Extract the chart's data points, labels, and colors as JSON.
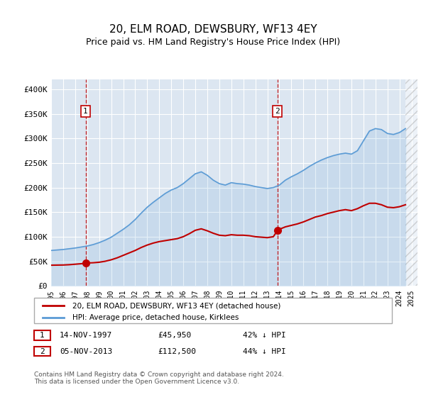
{
  "title": "20, ELM ROAD, DEWSBURY, WF13 4EY",
  "subtitle": "Price paid vs. HM Land Registry's House Price Index (HPI)",
  "ylabel_ticks": [
    "£0",
    "£50K",
    "£100K",
    "£150K",
    "£200K",
    "£250K",
    "£300K",
    "£350K",
    "£400K"
  ],
  "ylim": [
    0,
    420000
  ],
  "xlim_start": 1995,
  "xlim_end": 2025.5,
  "hpi_color": "#5b9bd5",
  "price_color": "#c00000",
  "background_color": "#dce6f1",
  "plot_bg": "#dce6f1",
  "marker1_date": 1997.87,
  "marker1_price": 45950,
  "marker1_label": "1",
  "marker2_date": 2013.84,
  "marker2_price": 112500,
  "marker2_label": "2",
  "legend_line1": "20, ELM ROAD, DEWSBURY, WF13 4EY (detached house)",
  "legend_line2": "HPI: Average price, detached house, Kirklees",
  "annotation1_date": "14-NOV-1997",
  "annotation1_price": "£45,950",
  "annotation1_pct": "42% ↓ HPI",
  "annotation2_date": "05-NOV-2013",
  "annotation2_price": "£112,500",
  "annotation2_pct": "44% ↓ HPI",
  "footer": "Contains HM Land Registry data © Crown copyright and database right 2024.\nThis data is licensed under the Open Government Licence v3.0.",
  "hpi_x": [
    1995,
    1995.5,
    1996,
    1996.5,
    1997,
    1997.5,
    1998,
    1998.5,
    1999,
    1999.5,
    2000,
    2000.5,
    2001,
    2001.5,
    2002,
    2002.5,
    2003,
    2003.5,
    2004,
    2004.5,
    2005,
    2005.5,
    2006,
    2006.5,
    2007,
    2007.5,
    2008,
    2008.5,
    2009,
    2009.5,
    2010,
    2010.5,
    2011,
    2011.5,
    2012,
    2012.5,
    2013,
    2013.5,
    2014,
    2014.5,
    2015,
    2015.5,
    2016,
    2016.5,
    2017,
    2017.5,
    2018,
    2018.5,
    2019,
    2019.5,
    2020,
    2020.5,
    2021,
    2021.5,
    2022,
    2022.5,
    2023,
    2023.5,
    2024,
    2024.5
  ],
  "hpi_y": [
    72000,
    73000,
    74000,
    75500,
    77000,
    79000,
    81000,
    84000,
    88000,
    93000,
    99000,
    107000,
    115000,
    124000,
    135000,
    148000,
    160000,
    170000,
    179000,
    188000,
    195000,
    200000,
    208000,
    218000,
    228000,
    232000,
    225000,
    215000,
    208000,
    205000,
    210000,
    208000,
    207000,
    205000,
    202000,
    200000,
    198000,
    200000,
    205000,
    215000,
    222000,
    228000,
    235000,
    243000,
    250000,
    256000,
    261000,
    265000,
    268000,
    270000,
    268000,
    275000,
    295000,
    315000,
    320000,
    318000,
    310000,
    308000,
    312000,
    320000
  ],
  "price_x": [
    1995,
    1995.5,
    1996,
    1996.5,
    1997,
    1997.5,
    1997.87,
    1998,
    1998.5,
    1999,
    1999.5,
    2000,
    2000.5,
    2001,
    2001.5,
    2002,
    2002.5,
    2003,
    2003.5,
    2004,
    2004.5,
    2005,
    2005.5,
    2006,
    2006.5,
    2007,
    2007.5,
    2008,
    2008.5,
    2009,
    2009.5,
    2010,
    2010.5,
    2011,
    2011.5,
    2012,
    2012.5,
    2013,
    2013.5,
    2013.84,
    2014,
    2014.5,
    2015,
    2015.5,
    2016,
    2016.5,
    2017,
    2017.5,
    2018,
    2018.5,
    2019,
    2019.5,
    2020,
    2020.5,
    2021,
    2021.5,
    2022,
    2022.5,
    2023,
    2023.5,
    2024,
    2024.5
  ],
  "price_y": [
    42000,
    42200,
    42400,
    43000,
    44000,
    45000,
    45950,
    46500,
    47000,
    48000,
    50000,
    53000,
    57000,
    62000,
    67000,
    72000,
    78000,
    83000,
    87000,
    90000,
    92000,
    94000,
    96000,
    100000,
    106000,
    113000,
    116000,
    112000,
    107000,
    103000,
    102000,
    104000,
    103000,
    103000,
    102000,
    100000,
    99000,
    98000,
    100000,
    112500,
    115000,
    120000,
    123000,
    126000,
    130000,
    135000,
    140000,
    143000,
    147000,
    150000,
    153000,
    155000,
    153000,
    157000,
    163000,
    168000,
    168000,
    165000,
    160000,
    159000,
    161000,
    165000
  ]
}
